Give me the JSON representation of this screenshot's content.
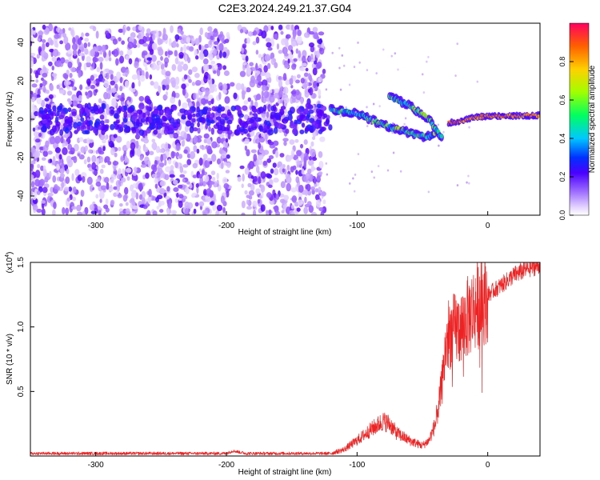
{
  "title": "C2E3.2024.249.21.37.G04",
  "chart_data": [
    {
      "type": "heatmap",
      "xlabel": "Height of straight line (km)",
      "ylabel": "Frequency (Hz)",
      "xlim": [
        -350,
        40
      ],
      "ylim": [
        -50,
        50
      ],
      "xticks": [
        -300,
        -200,
        -100,
        0
      ],
      "yticks": [
        -40,
        -20,
        0,
        20,
        40
      ],
      "colorbar": {
        "label": "Normalized spectral amplitude",
        "range": [
          0,
          1
        ],
        "ticks": [
          0.0,
          0.2,
          0.4,
          0.6,
          0.8
        ],
        "colors": [
          "#ffffff",
          "#b080ff",
          "#5a00ff",
          "#0030ff",
          "#00c8ff",
          "#00ff60",
          "#a0ff00",
          "#ffd000",
          "#ff6000",
          "#ff0060"
        ]
      },
      "features": [
        {
          "name": "noise",
          "x_range": [
            -350,
            -125
          ],
          "freq_range": [
            -50,
            48
          ],
          "amplitude": 0.15
        },
        {
          "name": "gap",
          "x_range": [
            -198,
            -188
          ]
        },
        {
          "name": "trace_main",
          "points": [
            [
              -120,
              5
            ],
            [
              -100,
              3
            ],
            [
              -80,
              -3
            ],
            [
              -65,
              -6
            ],
            [
              -50,
              -9
            ],
            [
              -40,
              -8
            ]
          ],
          "amplitude": 0.35
        },
        {
          "name": "trace_upper",
          "points": [
            [
              -75,
              12
            ],
            [
              -60,
              7
            ],
            [
              -45,
              0
            ],
            [
              -35,
              -10
            ]
          ],
          "amplitude": 0.35
        },
        {
          "name": "trace_carrier",
          "points": [
            [
              -30,
              -2
            ],
            [
              -20,
              -1
            ],
            [
              -10,
              1
            ],
            [
              0,
              1.5
            ],
            [
              40,
              2
            ]
          ],
          "amplitude": 0.9
        }
      ]
    },
    {
      "type": "line",
      "xlabel": "Height of straight line (km)",
      "ylabel": "SNR (10 * v/v)",
      "scale_label": "(x10",
      "scale_exp": "4",
      "scale_close": ")",
      "xlim": [
        -350,
        40
      ],
      "ylim": [
        0,
        1.5
      ],
      "xticks": [
        -300,
        -200,
        -100,
        0
      ],
      "yticks": [
        0.5,
        1.0,
        1.5
      ],
      "series_color": "#ee2222",
      "profile": [
        [
          -350,
          0.02
        ],
        [
          -200,
          0.02
        ],
        [
          -195,
          0.04
        ],
        [
          -185,
          0.02
        ],
        [
          -120,
          0.02
        ],
        [
          -110,
          0.05
        ],
        [
          -100,
          0.12
        ],
        [
          -90,
          0.2
        ],
        [
          -80,
          0.27
        ],
        [
          -75,
          0.25
        ],
        [
          -70,
          0.18
        ],
        [
          -60,
          0.12
        ],
        [
          -50,
          0.08
        ],
        [
          -45,
          0.12
        ],
        [
          -40,
          0.25
        ],
        [
          -35,
          0.55
        ],
        [
          -32,
          0.85
        ],
        [
          -30,
          0.95
        ],
        [
          -25,
          0.98
        ],
        [
          -20,
          1.0
        ],
        [
          -15,
          1.08
        ],
        [
          -10,
          1.15
        ],
        [
          -5,
          1.2
        ],
        [
          0,
          1.25
        ],
        [
          10,
          1.32
        ],
        [
          20,
          1.4
        ],
        [
          30,
          1.45
        ],
        [
          40,
          1.48
        ]
      ]
    }
  ]
}
